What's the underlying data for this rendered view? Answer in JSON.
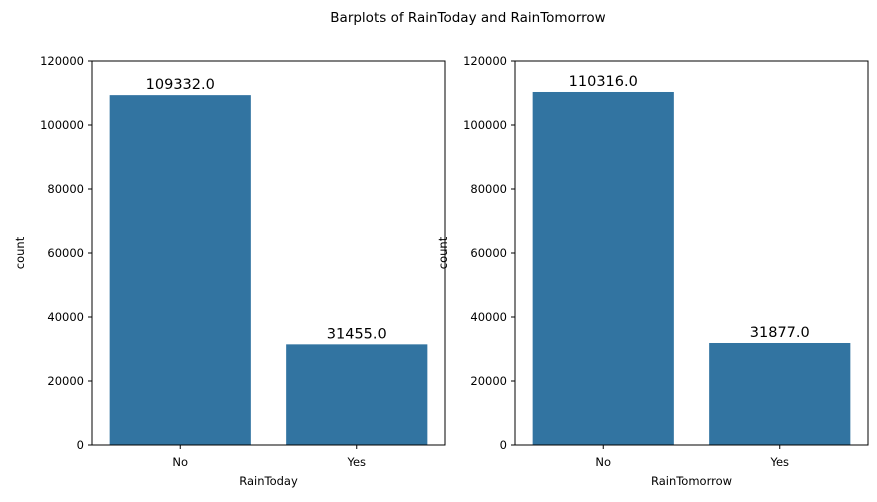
{
  "figure": {
    "suptitle": "Barplots of RainToday and RainTomorrow"
  },
  "chart_data": [
    {
      "type": "bar",
      "categories": [
        "No",
        "Yes"
      ],
      "values": [
        109332.0,
        31455.0
      ],
      "data_labels": [
        "109332.0",
        "31455.0"
      ],
      "xlabel": "RainToday",
      "ylabel": "count",
      "ylim": [
        0,
        120000
      ],
      "yticks": [
        0,
        20000,
        40000,
        60000,
        80000,
        100000,
        120000
      ],
      "ytick_labels": [
        "0",
        "20000",
        "40000",
        "60000",
        "80000",
        "100000",
        "120000"
      ],
      "color": "#3274a1",
      "grid": false
    },
    {
      "type": "bar",
      "categories": [
        "No",
        "Yes"
      ],
      "values": [
        110316.0,
        31877.0
      ],
      "data_labels": [
        "110316.0",
        "31877.0"
      ],
      "xlabel": "RainTomorrow",
      "ylabel": "count",
      "ylim": [
        0,
        120000
      ],
      "yticks": [
        0,
        20000,
        40000,
        60000,
        80000,
        100000,
        120000
      ],
      "ytick_labels": [
        "0",
        "20000",
        "40000",
        "60000",
        "80000",
        "100000",
        "120000"
      ],
      "color": "#3274a1",
      "grid": false
    }
  ]
}
